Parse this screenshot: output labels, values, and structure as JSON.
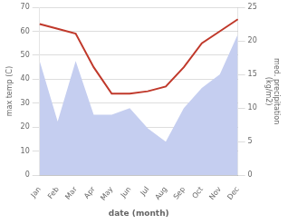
{
  "chart_data": {
    "type": "line",
    "categories": [
      "Jan",
      "Feb",
      "Mar",
      "Apr",
      "May",
      "Jun",
      "Jul",
      "Aug",
      "Sep",
      "Oct",
      "Nov",
      "Dec"
    ],
    "xlabel": "date (month)",
    "ylabel": "max temp (C)",
    "y2label": "med. precipitation\n(kg/m2)",
    "series": [
      {
        "type": "area",
        "color": "#c5cef0",
        "axis": "y2",
        "values": [
          17,
          8,
          17,
          9,
          9,
          10,
          7,
          5,
          10,
          13,
          15,
          21
        ]
      },
      {
        "type": "line",
        "color": "#c0392b",
        "values": [
          63,
          61,
          59,
          45,
          34,
          34,
          35,
          37,
          45,
          55,
          60,
          65
        ]
      }
    ],
    "ylim": [
      0,
      70
    ],
    "yticks": [
      0,
      10,
      20,
      30,
      40,
      50,
      60,
      70
    ],
    "y2lim": [
      0,
      25
    ],
    "y2ticks": [
      0,
      5,
      10,
      15,
      20,
      25
    ],
    "grid": true
  }
}
